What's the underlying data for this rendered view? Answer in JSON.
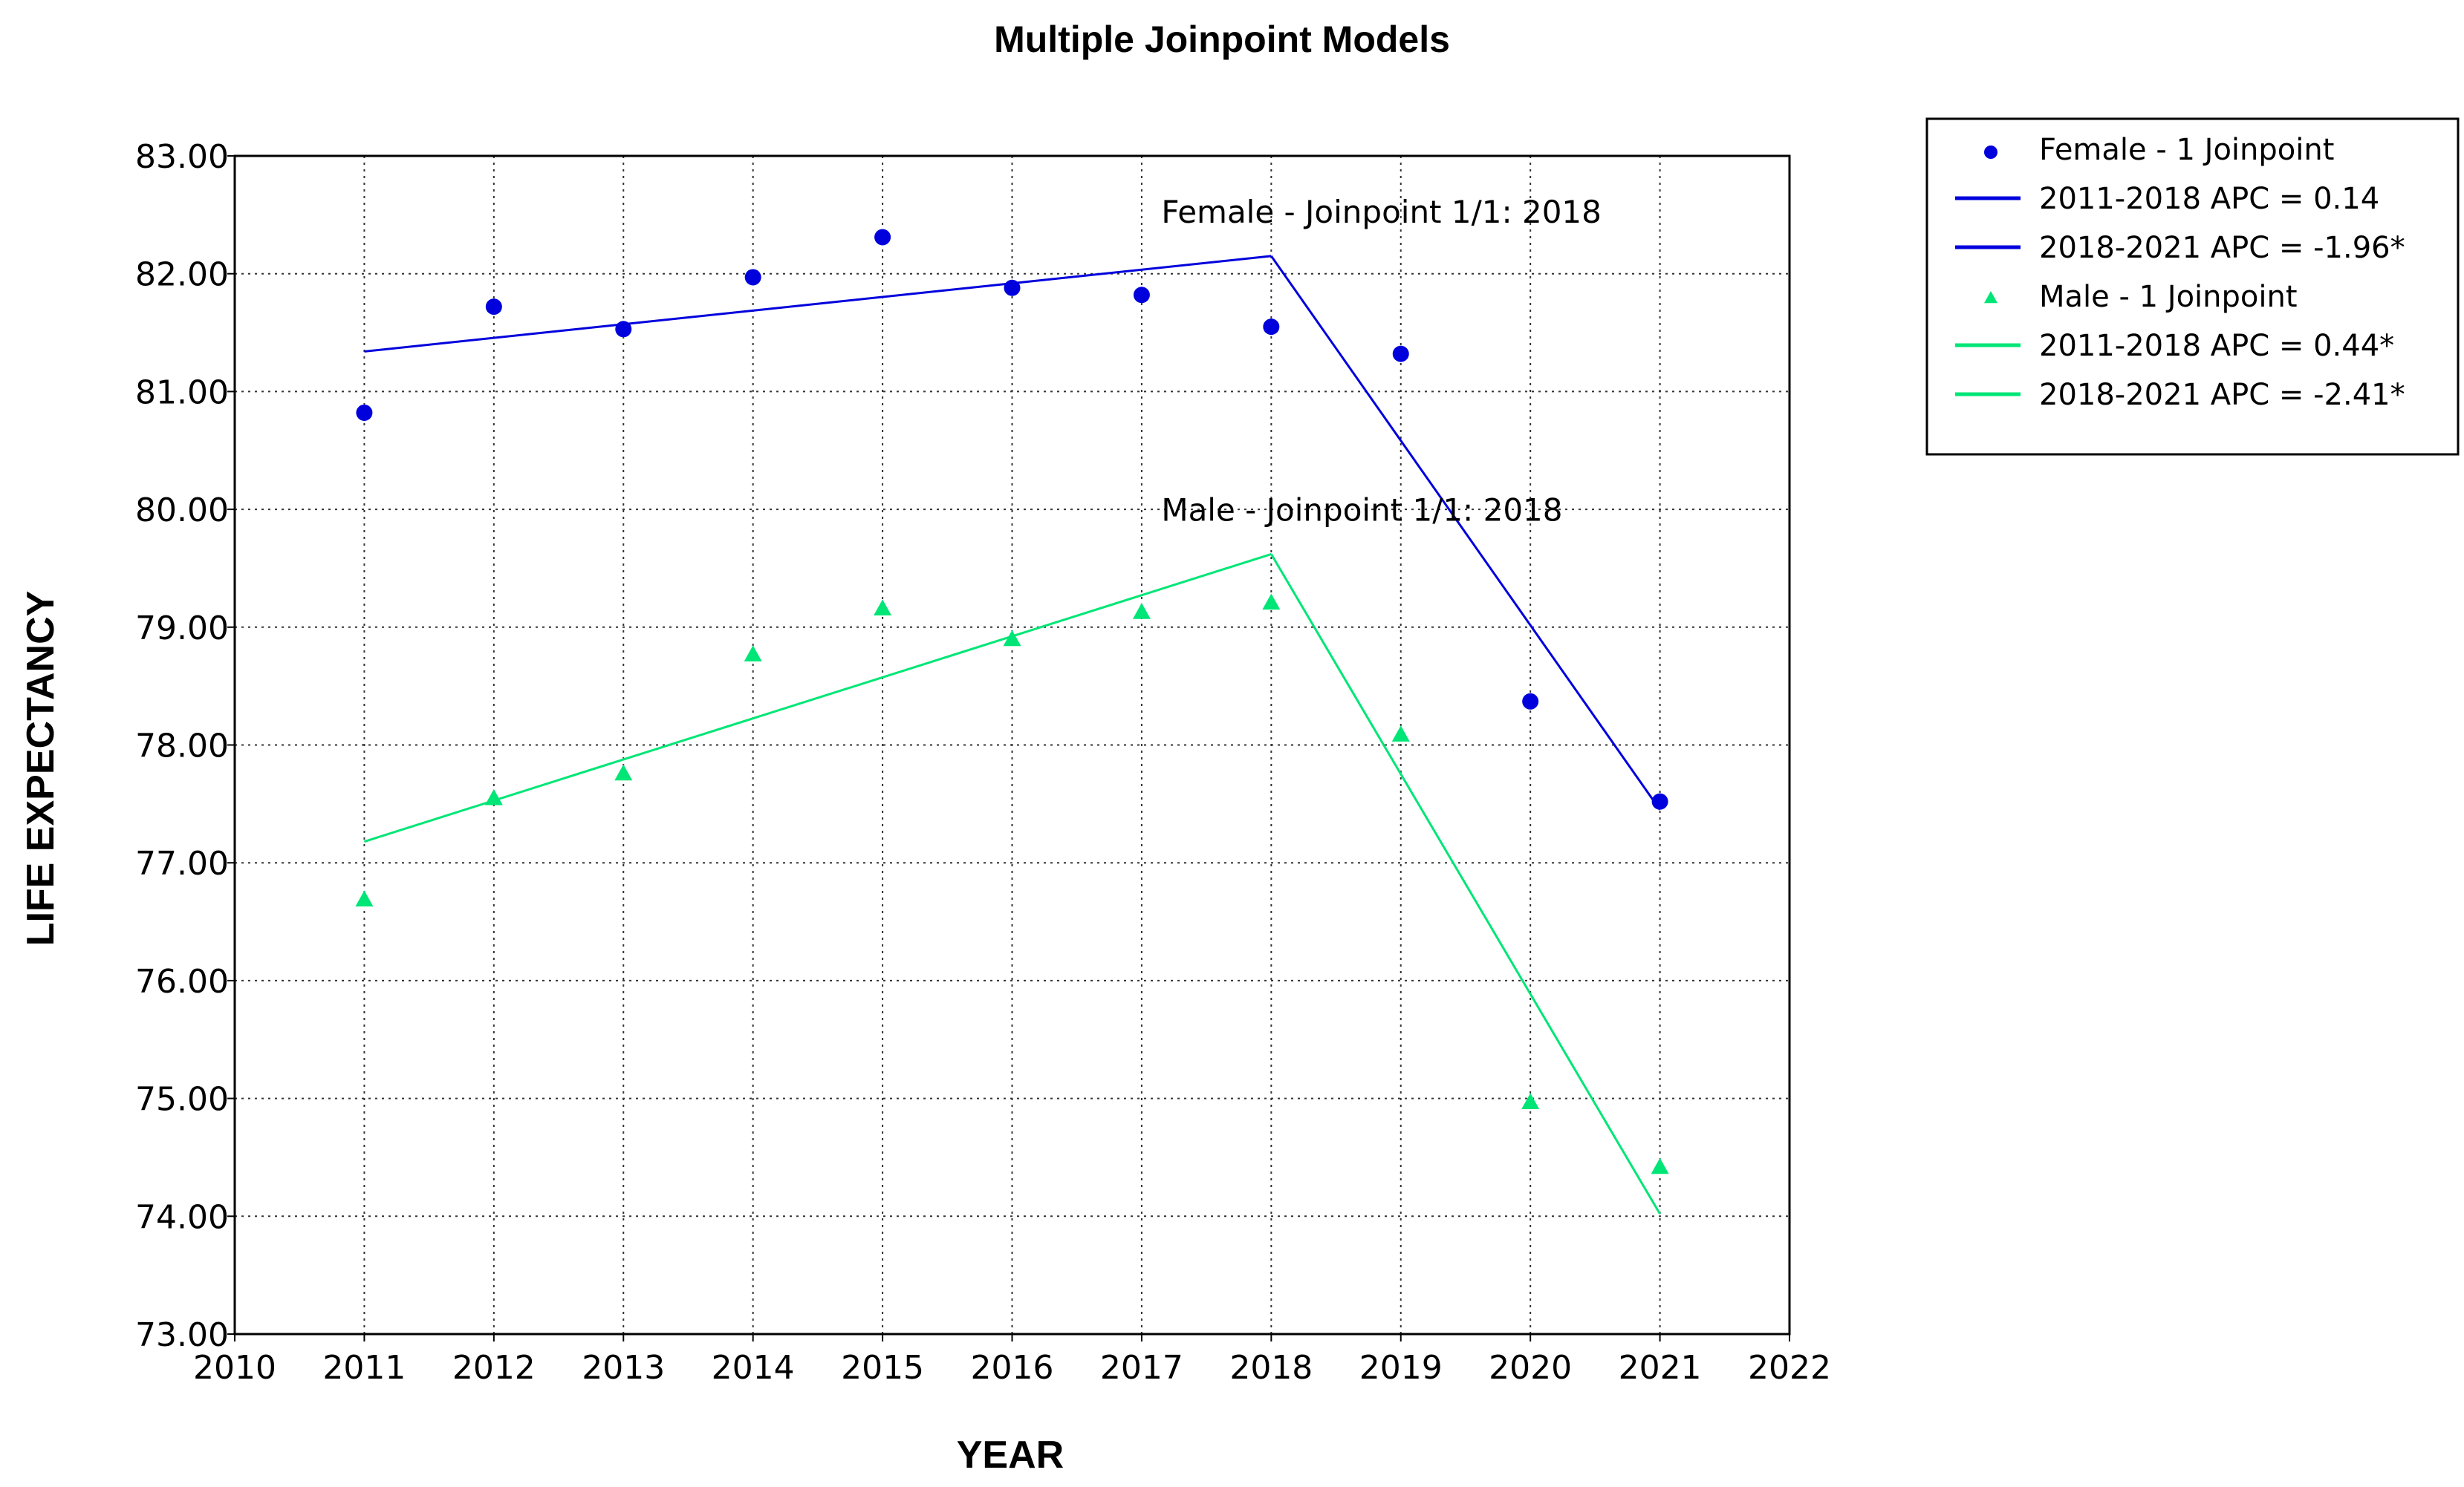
{
  "chart_data": {
    "type": "line",
    "title": "Multiple Joinpoint Models",
    "xlabel": "YEAR",
    "ylabel": "LIFE EXPECTANCY",
    "xlim": [
      2010,
      2022
    ],
    "ylim": [
      73.0,
      83.0
    ],
    "x_ticks": [
      "2010",
      "2011",
      "2012",
      "2013",
      "2014",
      "2015",
      "2016",
      "2017",
      "2018",
      "2019",
      "2020",
      "2021",
      "2022"
    ],
    "y_ticks": [
      "73.00",
      "74.00",
      "75.00",
      "76.00",
      "77.00",
      "78.00",
      "79.00",
      "80.00",
      "81.00",
      "82.00",
      "83.00"
    ],
    "grid": true,
    "legend_position": "right",
    "colors": {
      "female": "#0000dd",
      "male": "#00e676"
    },
    "series": [
      {
        "name": "Female - 1 Joinpoint",
        "kind": "observed",
        "marker": "circle",
        "color": "#0000dd",
        "x": [
          2011,
          2012,
          2013,
          2014,
          2015,
          2016,
          2017,
          2018,
          2019,
          2020,
          2021
        ],
        "y": [
          80.82,
          81.72,
          81.53,
          81.97,
          82.31,
          81.88,
          81.82,
          81.55,
          81.32,
          78.37,
          77.52
        ]
      },
      {
        "name": "2011-2018 APC  =  0.14",
        "kind": "fit",
        "color": "#0000dd",
        "x": [
          2011,
          2018
        ],
        "y": [
          81.34,
          82.15
        ]
      },
      {
        "name": "2018-2021 APC  =  -1.96*",
        "kind": "fit",
        "color": "#0000dd",
        "x": [
          2018,
          2021
        ],
        "y": [
          82.15,
          77.45
        ]
      },
      {
        "name": "Male - 1 Joinpoint",
        "kind": "observed",
        "marker": "triangle",
        "color": "#00e676",
        "x": [
          2011,
          2012,
          2013,
          2014,
          2015,
          2016,
          2017,
          2018,
          2019,
          2020,
          2021
        ],
        "y": [
          76.69,
          77.55,
          77.76,
          78.77,
          79.16,
          78.9,
          79.13,
          79.21,
          78.09,
          74.97,
          74.42
        ]
      },
      {
        "name": "2011-2018 APC  =  0.44*",
        "kind": "fit",
        "color": "#00e676",
        "x": [
          2011,
          2018
        ],
        "y": [
          77.18,
          79.62
        ]
      },
      {
        "name": "2018-2021 APC  =  -2.41*",
        "kind": "fit",
        "color": "#00e676",
        "x": [
          2018,
          2021
        ],
        "y": [
          79.62,
          74.02
        ]
      }
    ],
    "annotations": [
      {
        "text": "Female - Joinpoint 1/1:  2018",
        "x": 2018,
        "y": 82.15,
        "series": "female"
      },
      {
        "text": "Male - Joinpoint 1/1:  2018",
        "x": 2018,
        "y": 79.62,
        "series": "male"
      }
    ]
  }
}
